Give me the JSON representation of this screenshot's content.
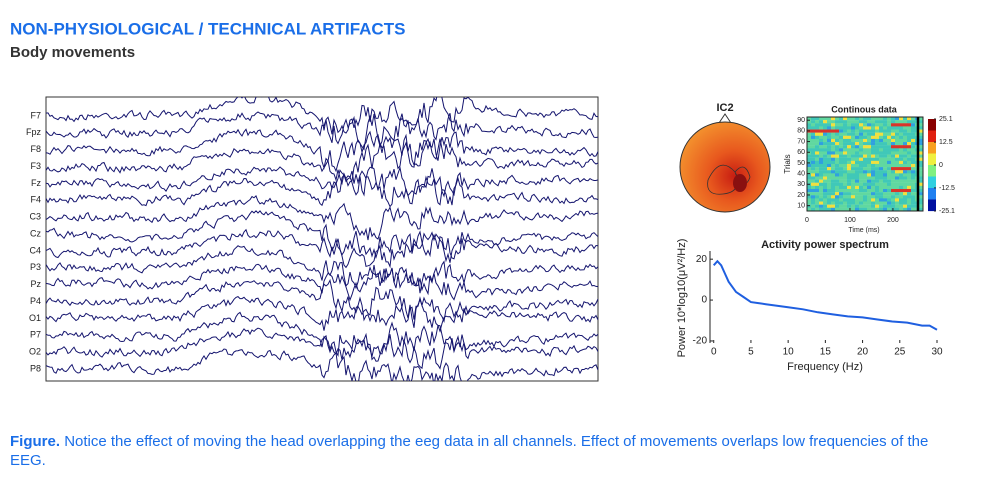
{
  "header": {
    "title": "NON-PHYSIOLOGICAL / TECHNICAL ARTIFACTS",
    "subtitle": "Body movements"
  },
  "eeg": {
    "channels": [
      "F7",
      "Fpz",
      "F8",
      "F3",
      "Fz",
      "F4",
      "C3",
      "Cz",
      "C4",
      "P3",
      "Pz",
      "P4",
      "O1",
      "P7",
      "O2",
      "P8"
    ]
  },
  "topomap": {
    "title": "IC2"
  },
  "erpimage": {
    "title": "Continous data",
    "ylabel": "Trials",
    "yticks": [
      10,
      20,
      30,
      40,
      50,
      60,
      70,
      80,
      90
    ],
    "ylim": [
      5,
      93
    ],
    "xlabel": "Time (ms)",
    "xticks": [
      0,
      100,
      200
    ],
    "xlim": [
      0,
      270
    ],
    "colorbar_ticks": [
      25.1,
      12.5,
      0,
      -12.5,
      -25.1
    ],
    "colorbar_lim": [
      -25.1,
      25.1
    ]
  },
  "spectrum": {
    "title": "Activity power spectrum",
    "xlabel": "Frequency (Hz)",
    "ylabel": "Power 10*log10(μV²/Hz)",
    "xlim": [
      -0.5,
      30
    ],
    "ylim": [
      -21,
      24
    ],
    "xticks": [
      0,
      5,
      10,
      15,
      20,
      25,
      30
    ],
    "yticks": [
      -20,
      0,
      20
    ],
    "color": "#1f5fe0",
    "x": [
      0,
      0.5,
      1,
      1.5,
      2,
      3,
      4,
      5,
      6,
      7,
      8,
      9,
      10,
      12,
      14,
      16,
      18,
      20,
      22,
      24,
      26,
      28,
      29,
      30
    ],
    "values": [
      17,
      19,
      17,
      13,
      9,
      4,
      1.5,
      -1,
      -1.5,
      -2,
      -2.5,
      -3,
      -3.5,
      -4.5,
      -6,
      -7,
      -8,
      -8.5,
      -9.5,
      -10.5,
      -11,
      -12.5,
      -12.5,
      -14.5
    ]
  },
  "caption": {
    "label": "Figure.",
    "text": "Notice the effect of moving the head overlapping the eeg data in all channels. Effect of movements overlaps low frequencies of the EEG."
  }
}
